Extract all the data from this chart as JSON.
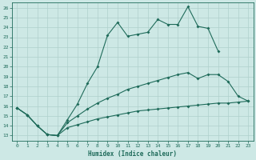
{
  "xlabel": "Humidex (Indice chaleur)",
  "xlim": [
    -0.5,
    23.5
  ],
  "ylim": [
    12.5,
    26.5
  ],
  "xticks": [
    0,
    1,
    2,
    3,
    4,
    5,
    6,
    7,
    8,
    9,
    10,
    11,
    12,
    13,
    14,
    15,
    16,
    17,
    18,
    19,
    20,
    21,
    22,
    23
  ],
  "yticks": [
    13,
    14,
    15,
    16,
    17,
    18,
    19,
    20,
    21,
    22,
    23,
    24,
    25,
    26
  ],
  "bg_color": "#cde8e5",
  "line_color": "#1f6b5a",
  "grid_color": "#b0d0cc",
  "line1_x": [
    0,
    1,
    2,
    3,
    4,
    5,
    6,
    7,
    8,
    9,
    10,
    11,
    12,
    13,
    14,
    15,
    16,
    17,
    18,
    19,
    20
  ],
  "line1_y": [
    15.8,
    15.1,
    14.0,
    13.1,
    13.0,
    14.6,
    16.2,
    18.3,
    20.0,
    23.2,
    24.5,
    23.1,
    23.3,
    23.5,
    24.8,
    24.3,
    24.3,
    26.1,
    24.1,
    23.9,
    21.6
  ],
  "line2_x": [
    0,
    1,
    2,
    3,
    4,
    5,
    6,
    7,
    8,
    9,
    10,
    11,
    12,
    13,
    14,
    15,
    16,
    17,
    18,
    19,
    20,
    21,
    22,
    23
  ],
  "line2_y": [
    15.8,
    15.1,
    14.0,
    13.1,
    13.0,
    14.3,
    15.0,
    15.7,
    16.3,
    16.8,
    17.2,
    17.7,
    18.0,
    18.3,
    18.6,
    18.9,
    19.2,
    19.4,
    18.8,
    19.2,
    19.2,
    18.5,
    17.0,
    16.5
  ],
  "line3_x": [
    0,
    1,
    2,
    3,
    4,
    5,
    6,
    7,
    8,
    9,
    10,
    11,
    12,
    13,
    14,
    15,
    16,
    17,
    18,
    19,
    20,
    21,
    22,
    23
  ],
  "line3_y": [
    15.8,
    15.1,
    14.0,
    13.1,
    13.0,
    13.8,
    14.1,
    14.4,
    14.7,
    14.9,
    15.1,
    15.3,
    15.5,
    15.6,
    15.7,
    15.8,
    15.9,
    16.0,
    16.1,
    16.2,
    16.3,
    16.3,
    16.4,
    16.5
  ]
}
